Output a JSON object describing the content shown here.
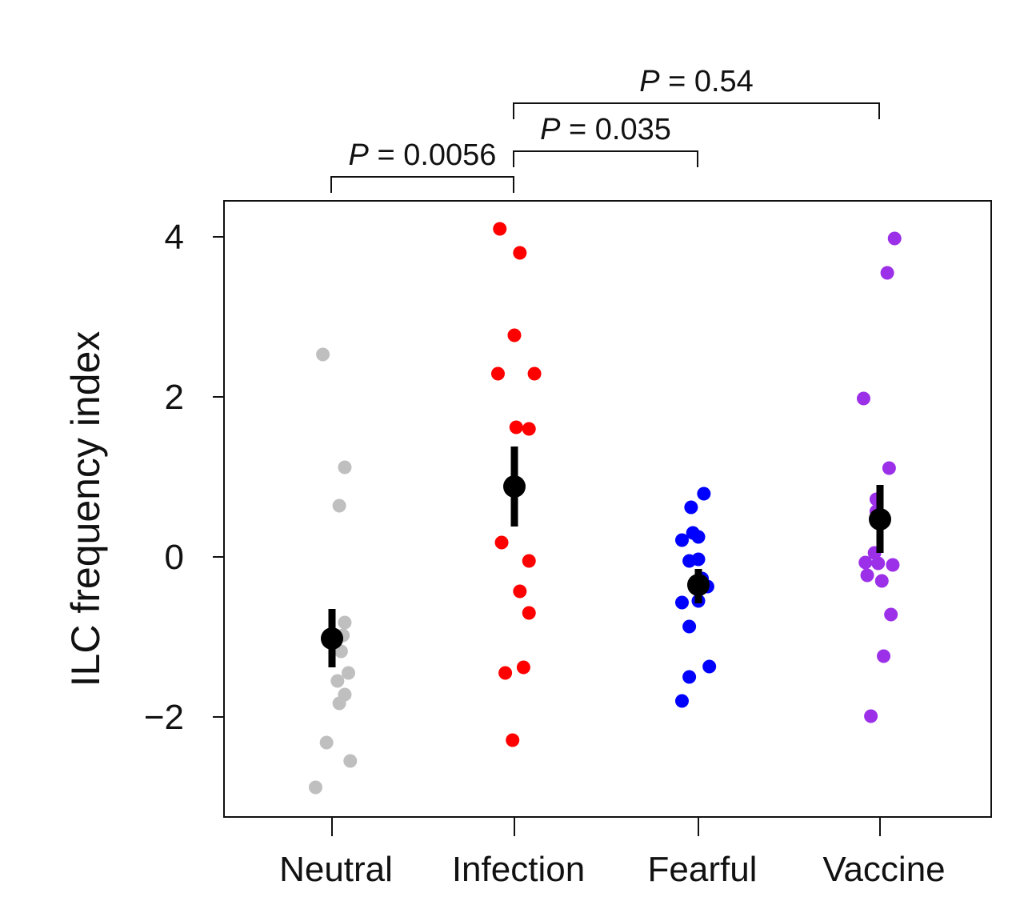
{
  "chart_data": {
    "type": "scatter",
    "title": "",
    "xlabel": "",
    "ylabel": "ILC frequency index",
    "ylim": [
      -3.25,
      4.45
    ],
    "yticks": [
      -2,
      0,
      2,
      4
    ],
    "yticklabels": [
      "−2",
      "0",
      "2",
      "4"
    ],
    "categories": [
      "Neutral",
      "Infection",
      "Fearful",
      "Vaccine"
    ],
    "colors": [
      "#bfbfbf",
      "#ff0000",
      "#0000ff",
      "#9b30e8"
    ],
    "summary_color": "#000000",
    "series": [
      {
        "name": "Neutral",
        "points": [
          {
            "jitter": -0.05,
            "y": 2.53
          },
          {
            "jitter": 0.07,
            "y": 1.12
          },
          {
            "jitter": 0.04,
            "y": 0.64
          },
          {
            "jitter": 0.07,
            "y": -0.82
          },
          {
            "jitter": 0.06,
            "y": -0.98
          },
          {
            "jitter": 0.05,
            "y": -1.18
          },
          {
            "jitter": 0.09,
            "y": -1.45
          },
          {
            "jitter": 0.03,
            "y": -1.55
          },
          {
            "jitter": 0.07,
            "y": -1.72
          },
          {
            "jitter": 0.04,
            "y": -1.83
          },
          {
            "jitter": -0.03,
            "y": -2.32
          },
          {
            "jitter": 0.1,
            "y": -2.55
          },
          {
            "jitter": -0.09,
            "y": -2.88
          }
        ],
        "mean": -1.02,
        "err_low": -1.38,
        "err_high": -0.65
      },
      {
        "name": "Infection",
        "points": [
          {
            "jitter": -0.08,
            "y": 4.1
          },
          {
            "jitter": 0.03,
            "y": 3.8
          },
          {
            "jitter": 0.0,
            "y": 2.77
          },
          {
            "jitter": -0.09,
            "y": 2.29
          },
          {
            "jitter": 0.11,
            "y": 2.29
          },
          {
            "jitter": 0.01,
            "y": 1.62
          },
          {
            "jitter": 0.08,
            "y": 1.6
          },
          {
            "jitter": -0.07,
            "y": 0.18
          },
          {
            "jitter": 0.08,
            "y": -0.05
          },
          {
            "jitter": 0.03,
            "y": -0.43
          },
          {
            "jitter": 0.08,
            "y": -0.7
          },
          {
            "jitter": 0.05,
            "y": -1.38
          },
          {
            "jitter": -0.05,
            "y": -1.45
          },
          {
            "jitter": -0.01,
            "y": -2.29
          }
        ],
        "mean": 0.88,
        "err_low": 0.38,
        "err_high": 1.38
      },
      {
        "name": "Fearful",
        "points": [
          {
            "jitter": 0.03,
            "y": 0.79
          },
          {
            "jitter": -0.04,
            "y": 0.62
          },
          {
            "jitter": -0.03,
            "y": 0.3
          },
          {
            "jitter": 0.0,
            "y": 0.25
          },
          {
            "jitter": -0.09,
            "y": 0.21
          },
          {
            "jitter": 0.0,
            "y": -0.03
          },
          {
            "jitter": -0.05,
            "y": -0.05
          },
          {
            "jitter": 0.02,
            "y": -0.27
          },
          {
            "jitter": 0.05,
            "y": -0.37
          },
          {
            "jitter": -0.09,
            "y": -0.57
          },
          {
            "jitter": 0.0,
            "y": -0.55
          },
          {
            "jitter": -0.05,
            "y": -0.87
          },
          {
            "jitter": 0.06,
            "y": -1.37
          },
          {
            "jitter": -0.05,
            "y": -1.5
          },
          {
            "jitter": -0.09,
            "y": -1.8
          }
        ],
        "mean": -0.35,
        "err_low": -0.58,
        "err_high": -0.15
      },
      {
        "name": "Vaccine",
        "points": [
          {
            "jitter": 0.08,
            "y": 3.98
          },
          {
            "jitter": 0.04,
            "y": 3.55
          },
          {
            "jitter": -0.09,
            "y": 1.98
          },
          {
            "jitter": 0.05,
            "y": 1.11
          },
          {
            "jitter": -0.02,
            "y": 0.72
          },
          {
            "jitter": -0.02,
            "y": 0.57
          },
          {
            "jitter": -0.03,
            "y": 0.05
          },
          {
            "jitter": -0.08,
            "y": -0.07
          },
          {
            "jitter": -0.01,
            "y": -0.08
          },
          {
            "jitter": 0.07,
            "y": -0.1
          },
          {
            "jitter": -0.07,
            "y": -0.23
          },
          {
            "jitter": 0.01,
            "y": -0.3
          },
          {
            "jitter": 0.06,
            "y": -0.72
          },
          {
            "jitter": 0.02,
            "y": -1.24
          },
          {
            "jitter": -0.05,
            "y": -1.99
          }
        ],
        "mean": 0.47,
        "err_low": 0.05,
        "err_high": 0.9
      }
    ],
    "comparisons": [
      {
        "from": "Neutral",
        "to": "Infection",
        "label": "P",
        "value": "= 0.0056",
        "level": 0
      },
      {
        "from": "Infection",
        "to": "Fearful",
        "label": "P",
        "value": "= 0.035",
        "level": 1
      },
      {
        "from": "Infection",
        "to": "Vaccine",
        "label": "P",
        "value": "= 0.54",
        "level": 2
      }
    ]
  }
}
